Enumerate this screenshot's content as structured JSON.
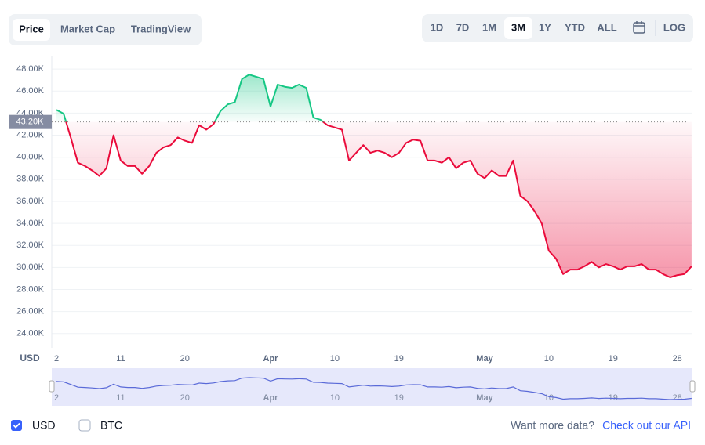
{
  "ui": {
    "tabs": [
      "Price",
      "Market Cap",
      "TradingView"
    ],
    "ranges": [
      "1D",
      "7D",
      "1M",
      "3M",
      "1Y",
      "YTD",
      "ALL"
    ],
    "scale_button": "LOG",
    "currencies": [
      "USD",
      "BTC"
    ],
    "footer": {
      "text": "Want more data?",
      "link": "Check out our API"
    }
  },
  "chart_data": {
    "type": "line",
    "axis_label": "USD",
    "categories": [
      "2",
      null,
      null,
      null,
      null,
      null,
      null,
      null,
      null,
      "11",
      null,
      null,
      null,
      null,
      null,
      null,
      null,
      null,
      "20",
      null,
      null,
      null,
      null,
      null,
      null,
      null,
      null,
      null,
      null,
      null,
      "Apr",
      null,
      null,
      null,
      null,
      null,
      null,
      null,
      null,
      "10",
      null,
      null,
      null,
      null,
      null,
      null,
      null,
      null,
      "19",
      null,
      null,
      null,
      null,
      null,
      null,
      null,
      null,
      null,
      null,
      null,
      "May",
      null,
      null,
      null,
      null,
      null,
      null,
      null,
      null,
      "10",
      null,
      null,
      null,
      null,
      null,
      null,
      null,
      null,
      "19",
      null,
      null,
      null,
      null,
      null,
      null,
      null,
      null,
      "28",
      null,
      null
    ],
    "values": [
      44300,
      43950,
      41800,
      39500,
      39200,
      38800,
      38300,
      39000,
      42000,
      39700,
      39200,
      39200,
      38500,
      39200,
      40400,
      40900,
      41100,
      41800,
      41500,
      41300,
      42900,
      42500,
      43000,
      44200,
      44800,
      45000,
      47100,
      47500,
      47300,
      47100,
      44600,
      46600,
      46400,
      46300,
      46600,
      46300,
      43600,
      43400,
      42900,
      42700,
      42500,
      39700,
      40400,
      41100,
      40400,
      40600,
      40400,
      40000,
      40400,
      41300,
      41600,
      41500,
      39700,
      39700,
      39500,
      40000,
      39000,
      39500,
      39700,
      38500,
      38100,
      38800,
      38300,
      38300,
      39700,
      36500,
      36000,
      35100,
      34000,
      31500,
      30800,
      29400,
      29800,
      29800,
      30100,
      30500,
      30000,
      30300,
      30100,
      29800,
      30100,
      30100,
      30300,
      29800,
      29800,
      29400,
      29100,
      29300,
      29400,
      30100
    ],
    "up_color": "#16c784",
    "down_color": "#ea0b3b",
    "navigator_color": "#5a6ad8",
    "baseline": {
      "value": 43200,
      "label": "43.20K"
    },
    "ylim": [
      22700,
      49150
    ],
    "yticks": [
      {
        "value": 24000,
        "label": "24.00K"
      },
      {
        "value": 26000,
        "label": "26.00K"
      },
      {
        "value": 28000,
        "label": "28.00K"
      },
      {
        "value": 30000,
        "label": "30.00K"
      },
      {
        "value": 32000,
        "label": "32.00K"
      },
      {
        "value": 34000,
        "label": "34.00K"
      },
      {
        "value": 36000,
        "label": "36.00K"
      },
      {
        "value": 38000,
        "label": "38.00K"
      },
      {
        "value": 40000,
        "label": "40.00K"
      },
      {
        "value": 42000,
        "label": "42.00K"
      },
      {
        "value": 44000,
        "label": "44.00K"
      },
      {
        "value": 46000,
        "label": "46.00K"
      },
      {
        "value": 48000,
        "label": "48.00K"
      }
    ],
    "grid": true
  }
}
